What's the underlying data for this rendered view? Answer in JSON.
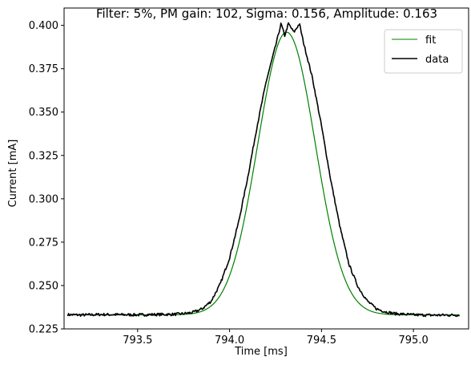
{
  "chart_data": {
    "type": "line",
    "title": "Filter: 5%, PM gain: 102, Sigma: 0.156, Amplitude: 0.163",
    "xlabel": "Time [ms]",
    "ylabel": "Current [mA]",
    "xlim": [
      793.1,
      795.3
    ],
    "ylim": [
      0.225,
      0.41
    ],
    "x_ticks": [
      793.5,
      794.0,
      794.5,
      795.0
    ],
    "x_tick_labels": [
      "793.5",
      "794.0",
      "794.5",
      "795.0"
    ],
    "y_ticks": [
      0.225,
      0.25,
      0.275,
      0.3,
      0.325,
      0.35,
      0.375,
      0.4
    ],
    "y_tick_labels": [
      "0.225",
      "0.250",
      "0.275",
      "0.300",
      "0.325",
      "0.350",
      "0.375",
      "0.400"
    ],
    "grid": false,
    "legend_position": "top-right",
    "series": [
      {
        "name": "fit",
        "color": "#008000",
        "model": "gaussian",
        "x_range": [
          793.12,
          795.25
        ],
        "baseline": 0.2331,
        "amplitude": 0.163,
        "sigma": 0.156,
        "center": 794.31,
        "notes_visible": "thin green line mostly hidden beneath the data"
      },
      {
        "name": "data",
        "color": "#000000",
        "x": [
          793.12,
          793.2,
          793.3,
          793.4,
          793.5,
          793.6,
          793.7,
          793.75,
          793.8,
          793.85,
          793.9,
          793.95,
          794.0,
          794.05,
          794.1,
          794.15,
          794.2,
          794.25,
          794.28,
          794.3,
          794.32,
          794.35,
          794.38,
          794.4,
          794.45,
          794.5,
          794.55,
          794.6,
          794.65,
          794.7,
          794.75,
          794.8,
          794.85,
          794.9,
          795.0,
          795.1,
          795.25
        ],
        "y": [
          0.2332,
          0.233,
          0.2333,
          0.2332,
          0.2331,
          0.2333,
          0.2334,
          0.2338,
          0.2345,
          0.2365,
          0.241,
          0.251,
          0.266,
          0.287,
          0.313,
          0.342,
          0.368,
          0.388,
          0.401,
          0.394,
          0.401,
          0.396,
          0.401,
          0.391,
          0.37,
          0.342,
          0.311,
          0.284,
          0.262,
          0.249,
          0.241,
          0.2365,
          0.2348,
          0.2338,
          0.2331,
          0.2329,
          0.233
        ]
      }
    ]
  }
}
